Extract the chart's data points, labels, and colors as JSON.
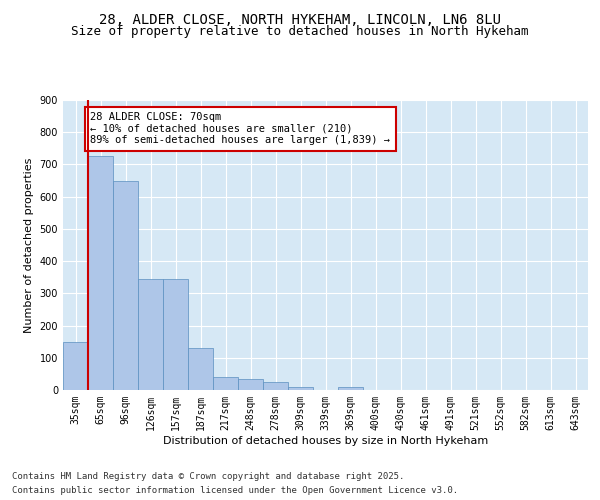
{
  "title_line1": "28, ALDER CLOSE, NORTH HYKEHAM, LINCOLN, LN6 8LU",
  "title_line2": "Size of property relative to detached houses in North Hykeham",
  "xlabel": "Distribution of detached houses by size in North Hykeham",
  "ylabel": "Number of detached properties",
  "categories": [
    "35sqm",
    "65sqm",
    "96sqm",
    "126sqm",
    "157sqm",
    "187sqm",
    "217sqm",
    "248sqm",
    "278sqm",
    "309sqm",
    "339sqm",
    "369sqm",
    "400sqm",
    "430sqm",
    "461sqm",
    "491sqm",
    "521sqm",
    "552sqm",
    "582sqm",
    "613sqm",
    "643sqm"
  ],
  "values": [
    150,
    725,
    650,
    345,
    345,
    130,
    40,
    35,
    25,
    10,
    0,
    8,
    0,
    0,
    0,
    0,
    0,
    0,
    0,
    0,
    0
  ],
  "bar_color": "#aec6e8",
  "bar_edge_color": "#5a8fc0",
  "vline_color": "#cc0000",
  "annotation_text_line1": "28 ALDER CLOSE: 70sqm",
  "annotation_text_line2": "← 10% of detached houses are smaller (210)",
  "annotation_text_line3": "89% of semi-detached houses are larger (1,839) →",
  "annotation_box_color": "#cc0000",
  "annotation_bg_color": "#ffffff",
  "ylim": [
    0,
    900
  ],
  "yticks": [
    0,
    100,
    200,
    300,
    400,
    500,
    600,
    700,
    800,
    900
  ],
  "footer_line1": "Contains HM Land Registry data © Crown copyright and database right 2025.",
  "footer_line2": "Contains public sector information licensed under the Open Government Licence v3.0.",
  "plot_bg_color": "#d6e8f5",
  "fig_bg_color": "#ffffff",
  "grid_color": "#ffffff",
  "title_fontsize": 10,
  "subtitle_fontsize": 9,
  "label_fontsize": 8,
  "tick_fontsize": 7,
  "annotation_fontsize": 7.5,
  "footer_fontsize": 6.5
}
